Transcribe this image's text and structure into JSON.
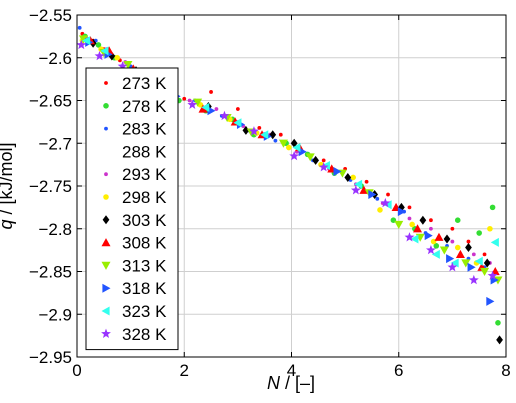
{
  "chart_data": {
    "type": "scatter",
    "xlabel_var": "N",
    "xlabel_unit": " / [–]",
    "ylabel_var": "q",
    "ylabel_unit": " / [kJ/mol]",
    "xlim": [
      0,
      8
    ],
    "ylim": [
      -2.95,
      -2.55
    ],
    "xticks": [
      0,
      2,
      4,
      6,
      8
    ],
    "xtick_labels": [
      "0",
      "2",
      "4",
      "6",
      "8"
    ],
    "yticks": [
      -2.55,
      -2.6,
      -2.65,
      -2.7,
      -2.75,
      -2.8,
      -2.85,
      -2.9,
      -2.95
    ],
    "ytick_labels": [
      "−2.55",
      "−2.6",
      "−2.65",
      "−2.7",
      "−2.75",
      "−2.8",
      "−2.85",
      "−2.9",
      "−2.95"
    ],
    "grid": true,
    "legend_position": "left",
    "series": [
      {
        "name": "273 K",
        "color": "#ff0000",
        "marker": "dot",
        "points": [
          [
            0.1,
            -2.572
          ],
          [
            0.3,
            -2.58
          ],
          [
            0.5,
            -2.59
          ],
          [
            0.8,
            -2.603
          ],
          [
            1.2,
            -2.618
          ],
          [
            1.6,
            -2.635
          ],
          [
            2.0,
            -2.648
          ],
          [
            2.5,
            -2.64
          ],
          [
            3.0,
            -2.66
          ],
          [
            3.4,
            -2.682
          ],
          [
            3.8,
            -2.69
          ],
          [
            4.2,
            -2.71
          ],
          [
            4.6,
            -2.72
          ],
          [
            5.0,
            -2.73
          ],
          [
            5.4,
            -2.745
          ],
          [
            5.8,
            -2.76
          ],
          [
            6.2,
            -2.775
          ],
          [
            6.6,
            -2.79
          ],
          [
            7.0,
            -2.8
          ],
          [
            7.3,
            -2.815
          ],
          [
            7.6,
            -2.83
          ],
          [
            7.8,
            -2.85
          ]
        ]
      },
      {
        "name": "278 K",
        "color": "#33dd33",
        "marker": "circle",
        "points": [
          [
            0.15,
            -2.575
          ],
          [
            0.4,
            -2.585
          ],
          [
            0.7,
            -2.6
          ],
          [
            1.3,
            -2.623
          ],
          [
            1.9,
            -2.65
          ],
          [
            2.4,
            -2.662
          ],
          [
            2.9,
            -2.672
          ],
          [
            3.3,
            -2.69
          ],
          [
            3.9,
            -2.7
          ],
          [
            4.3,
            -2.713
          ],
          [
            4.8,
            -2.735
          ],
          [
            5.3,
            -2.75
          ],
          [
            5.9,
            -2.79
          ],
          [
            6.3,
            -2.8
          ],
          [
            6.7,
            -2.82
          ],
          [
            7.1,
            -2.79
          ],
          [
            7.5,
            -2.805
          ],
          [
            7.75,
            -2.775
          ],
          [
            7.85,
            -2.91
          ]
        ]
      },
      {
        "name": "283 K",
        "color": "#2255ff",
        "marker": "dot",
        "points": [
          [
            0.05,
            -2.565
          ],
          [
            0.35,
            -2.58
          ],
          [
            0.6,
            -2.592
          ],
          [
            1.0,
            -2.61
          ],
          [
            1.5,
            -2.63
          ],
          [
            2.2,
            -2.65
          ],
          [
            2.7,
            -2.668
          ],
          [
            3.2,
            -2.685
          ],
          [
            3.7,
            -2.697
          ],
          [
            4.4,
            -2.72
          ],
          [
            5.1,
            -2.743
          ],
          [
            5.6,
            -2.765
          ],
          [
            6.1,
            -2.78
          ],
          [
            6.5,
            -2.805
          ],
          [
            6.9,
            -2.82
          ],
          [
            7.3,
            -2.835
          ],
          [
            7.6,
            -2.845
          ]
        ]
      },
      {
        "name": "288 K",
        "color": "#ffffff",
        "marker": "dot",
        "points": []
      },
      {
        "name": "293 K",
        "color": "#cc33cc",
        "marker": "dot",
        "points": [
          [
            0.2,
            -2.578
          ],
          [
            0.55,
            -2.59
          ],
          [
            0.9,
            -2.605
          ],
          [
            1.4,
            -2.628
          ],
          [
            2.1,
            -2.65
          ],
          [
            2.6,
            -2.66
          ],
          [
            3.1,
            -2.68
          ],
          [
            3.6,
            -2.69
          ],
          [
            4.1,
            -2.71
          ],
          [
            4.7,
            -2.73
          ],
          [
            5.2,
            -2.748
          ],
          [
            5.7,
            -2.77
          ],
          [
            6.2,
            -2.788
          ],
          [
            6.6,
            -2.8
          ],
          [
            7.0,
            -2.815
          ],
          [
            7.4,
            -2.83
          ],
          [
            7.7,
            -2.84
          ]
        ]
      },
      {
        "name": "298 K",
        "color": "#ffee00",
        "marker": "circle",
        "points": [
          [
            0.1,
            -2.58
          ],
          [
            0.45,
            -2.59
          ],
          [
            0.75,
            -2.6
          ],
          [
            1.5,
            -2.63
          ],
          [
            2.3,
            -2.655
          ],
          [
            2.85,
            -2.672
          ],
          [
            3.35,
            -2.688
          ],
          [
            3.95,
            -2.705
          ],
          [
            4.55,
            -2.725
          ],
          [
            5.15,
            -2.74
          ],
          [
            5.65,
            -2.778
          ],
          [
            6.25,
            -2.795
          ],
          [
            6.65,
            -2.815
          ],
          [
            7.1,
            -2.822
          ],
          [
            7.45,
            -2.84
          ],
          [
            7.7,
            -2.8
          ]
        ]
      },
      {
        "name": "303 K",
        "color": "#000000",
        "marker": "diamond",
        "points": [
          [
            0.3,
            -2.583
          ],
          [
            0.65,
            -2.598
          ],
          [
            1.1,
            -2.615
          ],
          [
            1.75,
            -2.64
          ],
          [
            2.45,
            -2.657
          ],
          [
            3.15,
            -2.685
          ],
          [
            3.65,
            -2.69
          ],
          [
            4.05,
            -2.7
          ],
          [
            4.45,
            -2.72
          ],
          [
            5.05,
            -2.74
          ],
          [
            5.55,
            -2.76
          ],
          [
            6.05,
            -2.775
          ],
          [
            6.45,
            -2.79
          ],
          [
            6.9,
            -2.812
          ],
          [
            7.3,
            -2.822
          ],
          [
            7.65,
            -2.84
          ],
          [
            7.88,
            -2.93
          ]
        ]
      },
      {
        "name": "308 K",
        "color": "#ff0000",
        "marker": "triangle-up",
        "points": [
          [
            0.25,
            -2.58
          ],
          [
            0.6,
            -2.592
          ],
          [
            1.05,
            -2.613
          ],
          [
            1.8,
            -2.642
          ],
          [
            2.35,
            -2.66
          ],
          [
            2.95,
            -2.675
          ],
          [
            3.45,
            -2.69
          ],
          [
            4.15,
            -2.705
          ],
          [
            4.75,
            -2.73
          ],
          [
            5.35,
            -2.755
          ],
          [
            5.95,
            -2.775
          ],
          [
            6.35,
            -2.8
          ],
          [
            6.75,
            -2.81
          ],
          [
            7.15,
            -2.83
          ],
          [
            7.55,
            -2.845
          ],
          [
            7.8,
            -2.85
          ]
        ]
      },
      {
        "name": "313 K",
        "color": "#99ee00",
        "marker": "triangle-down",
        "points": [
          [
            0.12,
            -2.578
          ],
          [
            0.5,
            -2.594
          ],
          [
            0.95,
            -2.608
          ],
          [
            1.65,
            -2.636
          ],
          [
            2.25,
            -2.652
          ],
          [
            2.8,
            -2.67
          ],
          [
            3.25,
            -2.687
          ],
          [
            3.85,
            -2.7
          ],
          [
            4.35,
            -2.716
          ],
          [
            4.95,
            -2.735
          ],
          [
            5.45,
            -2.758
          ],
          [
            6.0,
            -2.795
          ],
          [
            6.4,
            -2.81
          ],
          [
            6.85,
            -2.825
          ],
          [
            7.25,
            -2.84
          ],
          [
            7.6,
            -2.85
          ],
          [
            7.85,
            -2.86
          ]
        ]
      },
      {
        "name": "318 K",
        "color": "#2255ff",
        "marker": "triangle-right",
        "points": [
          [
            0.22,
            -2.582
          ],
          [
            0.58,
            -2.596
          ],
          [
            1.2,
            -2.62
          ],
          [
            1.85,
            -2.645
          ],
          [
            2.5,
            -2.662
          ],
          [
            3.05,
            -2.678
          ],
          [
            3.55,
            -2.692
          ],
          [
            4.2,
            -2.71
          ],
          [
            4.85,
            -2.733
          ],
          [
            5.5,
            -2.76
          ],
          [
            6.05,
            -2.78
          ],
          [
            6.55,
            -2.808
          ],
          [
            6.95,
            -2.835
          ],
          [
            7.35,
            -2.845
          ],
          [
            7.7,
            -2.885
          ],
          [
            7.78,
            -2.86
          ]
        ]
      },
      {
        "name": "323 K",
        "color": "#33ffee",
        "marker": "triangle-left",
        "points": [
          [
            0.18,
            -2.58
          ],
          [
            0.52,
            -2.592
          ],
          [
            1.15,
            -2.618
          ],
          [
            1.7,
            -2.64
          ],
          [
            2.4,
            -2.658
          ],
          [
            3.0,
            -2.676
          ],
          [
            3.5,
            -2.69
          ],
          [
            4.1,
            -2.705
          ],
          [
            4.65,
            -2.726
          ],
          [
            5.25,
            -2.748
          ],
          [
            5.8,
            -2.772
          ],
          [
            6.3,
            -2.812
          ],
          [
            6.7,
            -2.83
          ],
          [
            7.05,
            -2.84
          ],
          [
            7.5,
            -2.838
          ],
          [
            7.8,
            -2.816
          ]
        ]
      },
      {
        "name": "328 K",
        "color": "#9933ff",
        "marker": "star",
        "points": [
          [
            0.08,
            -2.585
          ],
          [
            0.42,
            -2.598
          ],
          [
            0.85,
            -2.61
          ],
          [
            1.45,
            -2.633
          ],
          [
            2.15,
            -2.655
          ],
          [
            2.75,
            -2.668
          ],
          [
            3.3,
            -2.686
          ],
          [
            4.05,
            -2.715
          ],
          [
            4.6,
            -2.728
          ],
          [
            5.2,
            -2.755
          ],
          [
            5.75,
            -2.77
          ],
          [
            6.2,
            -2.81
          ],
          [
            6.6,
            -2.825
          ],
          [
            7.0,
            -2.845
          ],
          [
            7.4,
            -2.86
          ],
          [
            7.75,
            -2.855
          ]
        ]
      }
    ]
  }
}
